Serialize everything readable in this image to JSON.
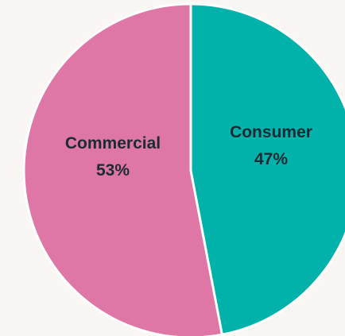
{
  "chart_data": {
    "type": "pie",
    "title": "",
    "slices": [
      {
        "label": "Consumer",
        "value": 47,
        "value_label": "47%",
        "color": "#00b2a9"
      },
      {
        "label": "Commercial",
        "value": 53,
        "value_label": "53%",
        "color": "#de77a6"
      }
    ],
    "start_angle": "12 o'clock",
    "direction": "clockwise",
    "legend": "none",
    "background": "#faf6f4"
  }
}
